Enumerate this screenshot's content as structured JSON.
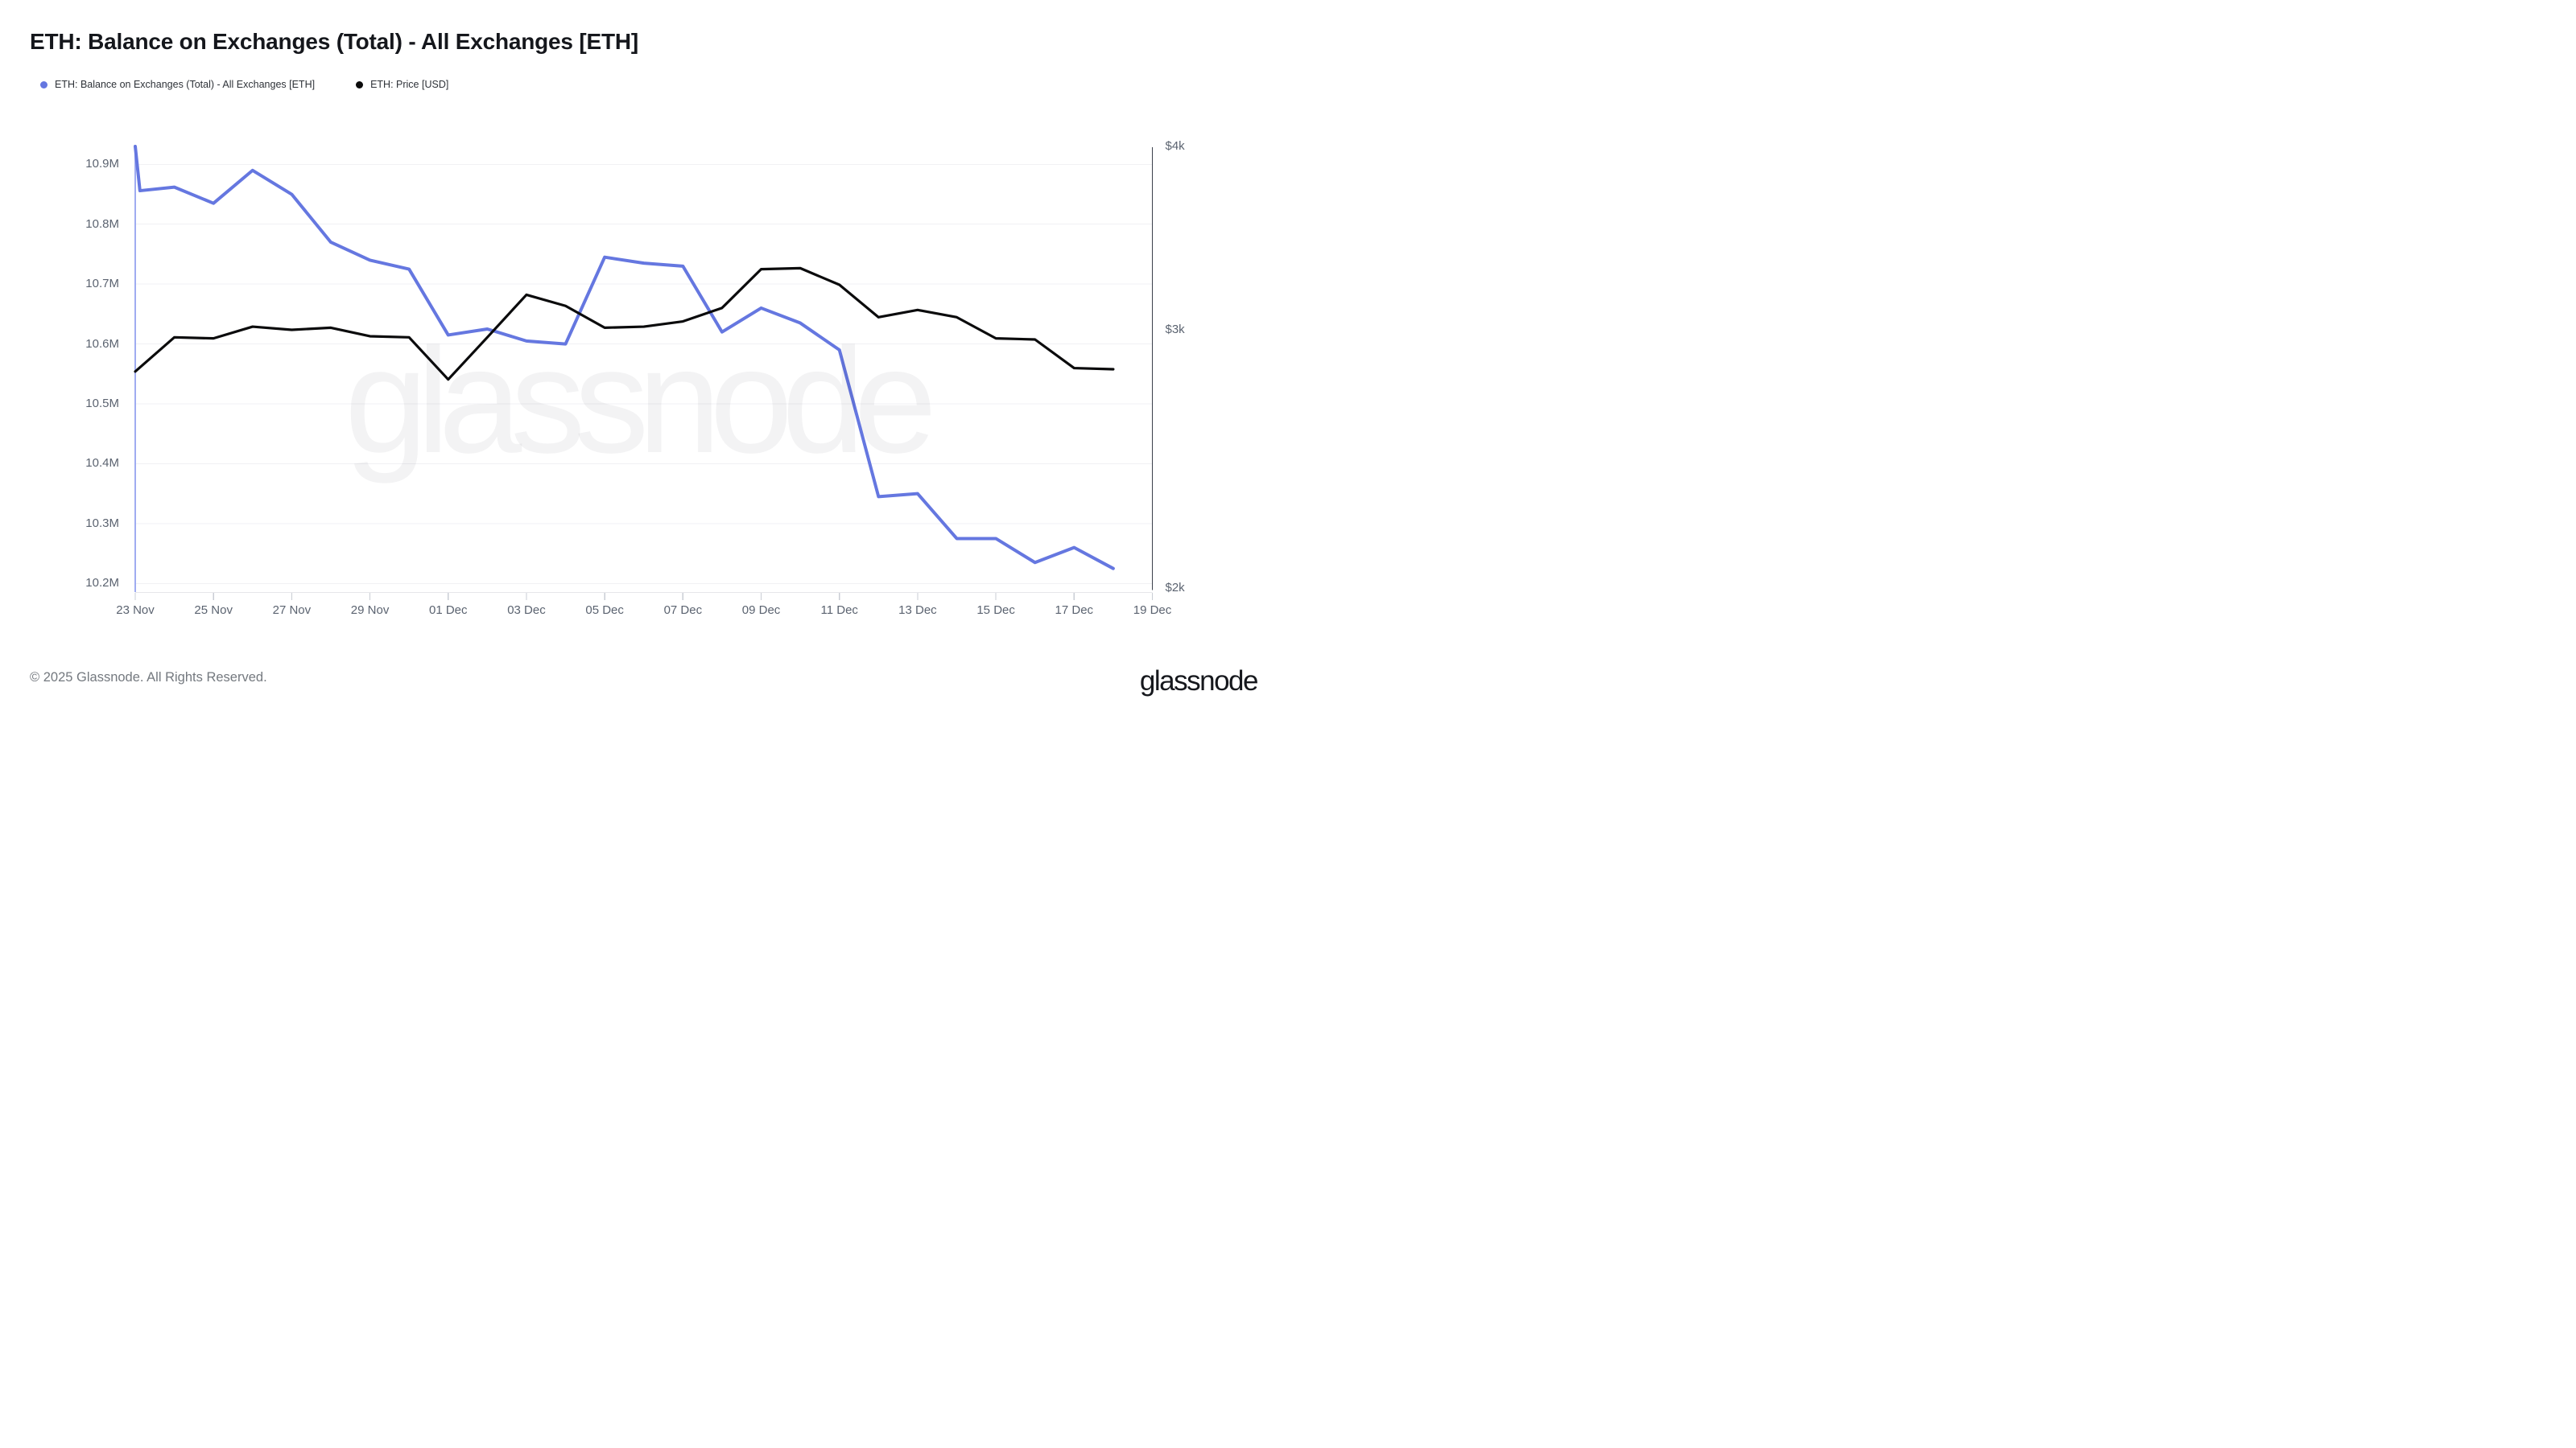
{
  "page": {
    "title": "ETH: Balance on Exchanges (Total) - All Exchanges [ETH]",
    "watermark": "glassnode",
    "footer_copyright": "© 2025 Glassnode. All Rights Reserved.",
    "brand_wordmark": "glassnode",
    "background_color": "#ffffff"
  },
  "legend": [
    {
      "id": "balance",
      "label": "ETH: Balance on Exchanges (Total) - All Exchanges [ETH]",
      "color": "#6577E0"
    },
    {
      "id": "price",
      "label": "ETH: Price [USD]",
      "color": "#0B0B0C"
    }
  ],
  "chart_data": {
    "type": "line",
    "title": "ETH: Balance on Exchanges (Total) - All Exchanges [ETH]",
    "grid": "horizontal-only",
    "legend_position": "top-left",
    "dates_daily": [
      "23 Nov",
      "24 Nov",
      "25 Nov",
      "26 Nov",
      "27 Nov",
      "28 Nov",
      "29 Nov",
      "30 Nov",
      "01 Dec",
      "02 Dec",
      "03 Dec",
      "04 Dec",
      "05 Dec",
      "06 Dec",
      "07 Dec",
      "08 Dec",
      "09 Dec",
      "10 Dec",
      "11 Dec",
      "12 Dec",
      "13 Dec",
      "14 Dec",
      "15 Dec",
      "16 Dec",
      "17 Dec",
      "18 Dec"
    ],
    "x_axis": {
      "tick_labels": [
        "23 Nov",
        "25 Nov",
        "27 Nov",
        "29 Nov",
        "01 Dec",
        "03 Dec",
        "05 Dec",
        "07 Dec",
        "09 Dec",
        "11 Dec",
        "13 Dec",
        "15 Dec",
        "17 Dec",
        "19 Dec"
      ],
      "tick_days": [
        0,
        2,
        4,
        6,
        8,
        10,
        12,
        14,
        16,
        18,
        20,
        22,
        24,
        26
      ],
      "total_days": 26
    },
    "left_axis": {
      "title": "ETH Balance (millions)",
      "scale": "linear",
      "range": [
        10.1856,
        10.93
      ],
      "tick_values": [
        10.9,
        10.8,
        10.7,
        10.6,
        10.5,
        10.4,
        10.3,
        10.2
      ],
      "tick_labels": [
        "10.9M",
        "10.8M",
        "10.7M",
        "10.6M",
        "10.5M",
        "10.4M",
        "10.3M",
        "10.2M"
      ]
    },
    "right_axis": {
      "title": "ETH Price (USD)",
      "scale": "log",
      "range": [
        1987,
        4002
      ],
      "tick_values": [
        4000,
        3000,
        2000
      ],
      "tick_labels": [
        "$4k",
        "$3k",
        "$2k"
      ]
    },
    "series": [
      {
        "name": "ETH: Balance on Exchanges (Total) - All Exchanges [ETH]",
        "id": "balance",
        "axis": "left",
        "unit": "M ETH",
        "color": "#6577E0",
        "stroke_width": 4,
        "x_days": [
          0,
          0.12,
          1,
          2,
          3,
          4,
          5,
          6,
          7,
          8,
          9,
          10,
          11,
          12,
          13,
          14,
          15,
          16,
          17,
          18,
          19,
          20,
          21,
          22,
          23,
          24,
          25
        ],
        "values": [
          10.93,
          10.856,
          10.862,
          10.835,
          10.89,
          10.85,
          10.77,
          10.74,
          10.725,
          10.615,
          10.625,
          10.605,
          10.6,
          10.745,
          10.735,
          10.73,
          10.62,
          10.66,
          10.635,
          10.59,
          10.345,
          10.35,
          10.275,
          10.275,
          10.235,
          10.26,
          10.225
        ]
      },
      {
        "name": "ETH: Price [USD]",
        "id": "price",
        "axis": "right",
        "unit": "USD",
        "color": "#0B0B0C",
        "stroke_width": 3.2,
        "x_days": [
          0,
          1,
          2,
          3,
          4,
          5,
          6,
          7,
          8,
          9,
          10,
          11,
          12,
          13,
          14,
          15,
          16,
          17,
          18,
          19,
          20,
          21,
          22,
          23,
          24,
          25
        ],
        "values": [
          2810,
          2965,
          2960,
          3015,
          3000,
          3010,
          2970,
          2965,
          2775,
          2965,
          3170,
          3115,
          3010,
          3015,
          3040,
          3105,
          3300,
          3305,
          3220,
          3060,
          3095,
          3060,
          2960,
          2955,
          2825,
          2820
        ]
      }
    ],
    "plot_style": {
      "gridline_color": "#F1F1F4",
      "left_border_color": "#9FACF1",
      "right_axis_color": "#3A3F4B",
      "bottom_axis_color": "#E6E6EA",
      "tick_mark_color": "#C9CDD4"
    }
  }
}
